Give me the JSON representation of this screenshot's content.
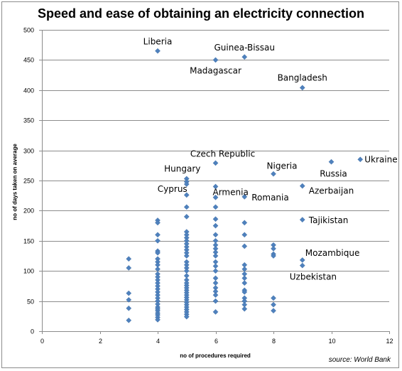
{
  "chart_data": {
    "type": "scatter",
    "title": "Speed and ease of obtaining an electricity connection",
    "xlabel": "no of procedures required",
    "ylabel": "no of days taken on average",
    "source": "source: World Bank",
    "xlim": [
      0,
      12
    ],
    "ylim": [
      0,
      500
    ],
    "xticks": [
      0,
      2,
      4,
      6,
      8,
      10,
      12
    ],
    "yticks": [
      0,
      50,
      100,
      150,
      200,
      250,
      300,
      350,
      400,
      450,
      500
    ],
    "grid": "horizontal",
    "marker_color": "#4f81bd",
    "points": [
      {
        "x": 3,
        "y": 120
      },
      {
        "x": 3,
        "y": 105
      },
      {
        "x": 3,
        "y": 63
      },
      {
        "x": 3,
        "y": 52
      },
      {
        "x": 3,
        "y": 38
      },
      {
        "x": 3,
        "y": 18
      },
      {
        "x": 4,
        "y": 184
      },
      {
        "x": 4,
        "y": 180
      },
      {
        "x": 4,
        "y": 160
      },
      {
        "x": 4,
        "y": 150
      },
      {
        "x": 4,
        "y": 133
      },
      {
        "x": 4,
        "y": 130
      },
      {
        "x": 4,
        "y": 120
      },
      {
        "x": 4,
        "y": 115
      },
      {
        "x": 4,
        "y": 110
      },
      {
        "x": 4,
        "y": 103
      },
      {
        "x": 4,
        "y": 95
      },
      {
        "x": 4,
        "y": 90
      },
      {
        "x": 4,
        "y": 85
      },
      {
        "x": 4,
        "y": 80
      },
      {
        "x": 4,
        "y": 75
      },
      {
        "x": 4,
        "y": 70
      },
      {
        "x": 4,
        "y": 65
      },
      {
        "x": 4,
        "y": 60
      },
      {
        "x": 4,
        "y": 55
      },
      {
        "x": 4,
        "y": 50
      },
      {
        "x": 4,
        "y": 45
      },
      {
        "x": 4,
        "y": 40
      },
      {
        "x": 4,
        "y": 37
      },
      {
        "x": 4,
        "y": 34
      },
      {
        "x": 4,
        "y": 30
      },
      {
        "x": 4,
        "y": 27
      },
      {
        "x": 4,
        "y": 23
      },
      {
        "x": 4,
        "y": 19
      },
      {
        "x": 5,
        "y": 253
      },
      {
        "x": 5,
        "y": 248
      },
      {
        "x": 5,
        "y": 244
      },
      {
        "x": 5,
        "y": 226
      },
      {
        "x": 5,
        "y": 206
      },
      {
        "x": 5,
        "y": 190
      },
      {
        "x": 5,
        "y": 165
      },
      {
        "x": 5,
        "y": 160
      },
      {
        "x": 5,
        "y": 155
      },
      {
        "x": 5,
        "y": 150
      },
      {
        "x": 5,
        "y": 145
      },
      {
        "x": 5,
        "y": 140
      },
      {
        "x": 5,
        "y": 135
      },
      {
        "x": 5,
        "y": 130
      },
      {
        "x": 5,
        "y": 125
      },
      {
        "x": 5,
        "y": 115
      },
      {
        "x": 5,
        "y": 110
      },
      {
        "x": 5,
        "y": 105
      },
      {
        "x": 5,
        "y": 100
      },
      {
        "x": 5,
        "y": 92
      },
      {
        "x": 5,
        "y": 85
      },
      {
        "x": 5,
        "y": 80
      },
      {
        "x": 5,
        "y": 76
      },
      {
        "x": 5,
        "y": 72
      },
      {
        "x": 5,
        "y": 68
      },
      {
        "x": 5,
        "y": 64
      },
      {
        "x": 5,
        "y": 60
      },
      {
        "x": 5,
        "y": 56
      },
      {
        "x": 5,
        "y": 52
      },
      {
        "x": 5,
        "y": 48
      },
      {
        "x": 5,
        "y": 44
      },
      {
        "x": 5,
        "y": 40
      },
      {
        "x": 5,
        "y": 36
      },
      {
        "x": 5,
        "y": 32
      },
      {
        "x": 5,
        "y": 28
      },
      {
        "x": 5,
        "y": 24
      },
      {
        "x": 6,
        "y": 279
      },
      {
        "x": 6,
        "y": 240
      },
      {
        "x": 6,
        "y": 222
      },
      {
        "x": 6,
        "y": 206
      },
      {
        "x": 6,
        "y": 186
      },
      {
        "x": 6,
        "y": 175
      },
      {
        "x": 6,
        "y": 160
      },
      {
        "x": 6,
        "y": 150
      },
      {
        "x": 6,
        "y": 143
      },
      {
        "x": 6,
        "y": 137
      },
      {
        "x": 6,
        "y": 131
      },
      {
        "x": 6,
        "y": 125
      },
      {
        "x": 6,
        "y": 115
      },
      {
        "x": 6,
        "y": 108
      },
      {
        "x": 6,
        "y": 100
      },
      {
        "x": 6,
        "y": 88
      },
      {
        "x": 6,
        "y": 80
      },
      {
        "x": 6,
        "y": 72
      },
      {
        "x": 6,
        "y": 66
      },
      {
        "x": 6,
        "y": 60
      },
      {
        "x": 6,
        "y": 50
      },
      {
        "x": 6,
        "y": 32
      },
      {
        "x": 7,
        "y": 223
      },
      {
        "x": 7,
        "y": 180
      },
      {
        "x": 7,
        "y": 160
      },
      {
        "x": 7,
        "y": 141
      },
      {
        "x": 7,
        "y": 110
      },
      {
        "x": 7,
        "y": 103
      },
      {
        "x": 7,
        "y": 95
      },
      {
        "x": 7,
        "y": 88
      },
      {
        "x": 7,
        "y": 80
      },
      {
        "x": 7,
        "y": 68
      },
      {
        "x": 7,
        "y": 65
      },
      {
        "x": 7,
        "y": 55
      },
      {
        "x": 7,
        "y": 50
      },
      {
        "x": 7,
        "y": 44
      },
      {
        "x": 7,
        "y": 37
      },
      {
        "x": 8,
        "y": 261
      },
      {
        "x": 8,
        "y": 143
      },
      {
        "x": 8,
        "y": 137
      },
      {
        "x": 8,
        "y": 128
      },
      {
        "x": 8,
        "y": 125
      },
      {
        "x": 8,
        "y": 55
      },
      {
        "x": 8,
        "y": 44
      },
      {
        "x": 8,
        "y": 34
      },
      {
        "x": 4,
        "y": 465
      },
      {
        "x": 6,
        "y": 450
      },
      {
        "x": 7,
        "y": 455
      },
      {
        "x": 9,
        "y": 404
      },
      {
        "x": 9,
        "y": 241
      },
      {
        "x": 9,
        "y": 185
      },
      {
        "x": 9,
        "y": 118
      },
      {
        "x": 9,
        "y": 109
      },
      {
        "x": 10,
        "y": 281
      },
      {
        "x": 11,
        "y": 285
      }
    ],
    "annotations": [
      {
        "label": "Liberia",
        "x": 4,
        "y": 465
      },
      {
        "label": "Guinea-Bissau",
        "x": 7,
        "y": 455
      },
      {
        "label": "Madagascar",
        "x": 6,
        "y": 450
      },
      {
        "label": "Bangladesh",
        "x": 9,
        "y": 404
      },
      {
        "label": "Czech Republic",
        "x": 6,
        "y": 279
      },
      {
        "label": "Nigeria",
        "x": 8,
        "y": 261
      },
      {
        "label": "Hungary",
        "x": 5,
        "y": 253
      },
      {
        "label": "Cyprus",
        "x": 5,
        "y": 244
      },
      {
        "label": "Armenia",
        "x": 6,
        "y": 240
      },
      {
        "label": "Russia",
        "x": 10,
        "y": 281
      },
      {
        "label": "Ukraine",
        "x": 11,
        "y": 285
      },
      {
        "label": "Azerbaijan",
        "x": 9,
        "y": 241
      },
      {
        "label": "Romania",
        "x": 7,
        "y": 223
      },
      {
        "label": "Tajikistan",
        "x": 9,
        "y": 185
      },
      {
        "label": "Mozambique",
        "x": 9,
        "y": 118
      },
      {
        "label": "Uzbekistan",
        "x": 9,
        "y": 109
      }
    ]
  }
}
